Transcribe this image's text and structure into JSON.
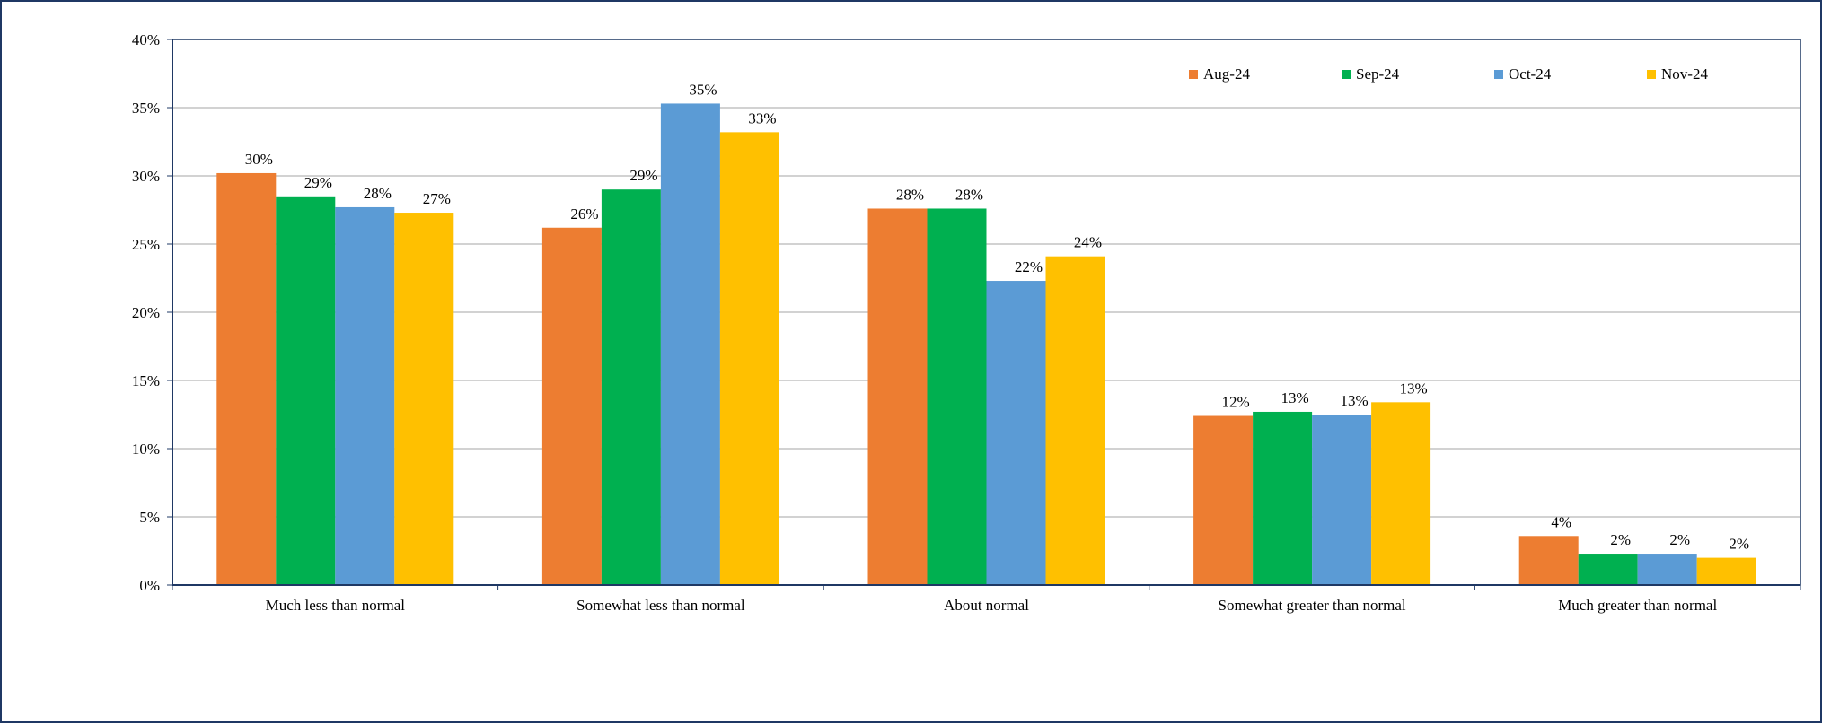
{
  "chart_data": {
    "type": "bar",
    "title": "",
    "xlabel": "",
    "ylabel": "",
    "ylim": [
      0,
      40
    ],
    "yticks": [
      0,
      5,
      10,
      15,
      20,
      25,
      30,
      35,
      40
    ],
    "ytick_labels": [
      "0%",
      "5%",
      "10%",
      "15%",
      "20%",
      "25%",
      "30%",
      "35%",
      "40%"
    ],
    "grid": true,
    "legend_position": "top-right",
    "categories": [
      "Much less than normal",
      "Somewhat less than normal",
      "About normal",
      "Somewhat greater than normal",
      "Much greater than normal"
    ],
    "series": [
      {
        "name": "Aug-24",
        "color": "#ed7d31",
        "values": [
          30.2,
          26.2,
          27.6,
          12.4,
          3.6
        ],
        "labels": [
          "30%",
          "26%",
          "28%",
          "12%",
          "4%"
        ]
      },
      {
        "name": "Sep-24",
        "color": "#00b050",
        "values": [
          28.5,
          29.0,
          27.6,
          12.7,
          2.3
        ],
        "labels": [
          "29%",
          "29%",
          "28%",
          "13%",
          "2%"
        ]
      },
      {
        "name": "Oct-24",
        "color": "#5b9bd5",
        "values": [
          27.7,
          35.3,
          22.3,
          12.5,
          2.3
        ],
        "labels": [
          "28%",
          "35%",
          "22%",
          "13%",
          "2%"
        ]
      },
      {
        "name": "Nov-24",
        "color": "#ffc000",
        "values": [
          27.3,
          33.2,
          24.1,
          13.4,
          2.0
        ],
        "labels": [
          "27%",
          "33%",
          "24%",
          "13%",
          "2%"
        ]
      }
    ]
  }
}
